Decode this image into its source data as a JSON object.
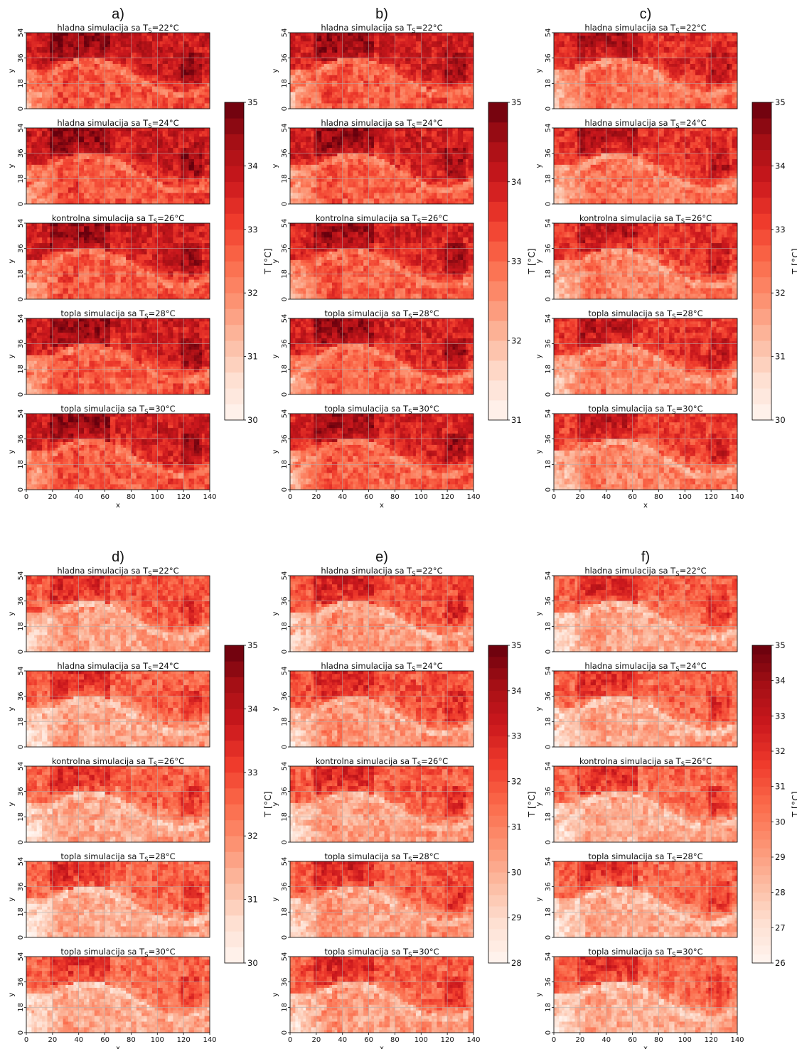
{
  "figure": {
    "subplot_titles": [
      "hladna simulacija sa T_S=22°C",
      "hladna simulacija sa T_S=24°C",
      "kontrolna simulacija sa T_S=26°C",
      "topla simulacija sa T_S=28°C",
      "topla simulacija sa T_S=30°C"
    ],
    "title_subscript": "S",
    "colors": {
      "cmap": "Reds",
      "low": "#fff5f0",
      "high": "#67000d",
      "grid": "#b0b0b0"
    }
  },
  "chart_data": [
    {
      "type": "heatmap",
      "panel": "a)",
      "titles": [
        "hladna simulacija sa T_S=22°C",
        "hladna simulacija sa T_S=24°C",
        "kontrolna simulacija sa T_S=26°C",
        "topla simulacija sa T_S=28°C",
        "topla simulacija sa T_S=30°C"
      ],
      "xlabel": "x",
      "ylabel": "y",
      "xlim": [
        0,
        140
      ],
      "ylim": [
        0,
        54
      ],
      "xticks": [
        0,
        20,
        40,
        60,
        80,
        100,
        120,
        140
      ],
      "yticks": [
        0,
        18,
        36,
        54
      ],
      "colorbar": {
        "label": "T [°C]",
        "range": [
          30,
          35
        ],
        "ticks": [
          30,
          31,
          32,
          33,
          34,
          35
        ]
      },
      "mean_level": [
        0.72,
        0.72,
        0.7,
        0.7,
        0.7
      ],
      "grid": true
    },
    {
      "type": "heatmap",
      "panel": "b)",
      "titles": [
        "hladna simulacija sa T_S=22°C",
        "hladna simulacija sa T_S=24°C",
        "kontrolna simulacija sa T_S=26°C",
        "topla simulacija sa T_S=28°C",
        "topla simulacija sa T_S=30°C"
      ],
      "xlabel": "x",
      "ylabel": "y",
      "xlim": [
        0,
        140
      ],
      "ylim": [
        0,
        54
      ],
      "xticks": [
        0,
        20,
        40,
        60,
        80,
        100,
        120,
        140
      ],
      "yticks": [
        0,
        18,
        36,
        54
      ],
      "colorbar": {
        "label": "T [°C]",
        "range": [
          31,
          35
        ],
        "ticks": [
          31,
          32,
          33,
          34,
          35
        ]
      },
      "mean_level": [
        0.7,
        0.69,
        0.68,
        0.68,
        0.68
      ],
      "grid": true
    },
    {
      "type": "heatmap",
      "panel": "c)",
      "titles": [
        "hladna simulacija sa T_S=22°C",
        "hladna simulacija sa T_S=24°C",
        "kontrolna simulacija sa T_S=26°C",
        "topla simulacija sa T_S=28°C",
        "topla simulacija sa T_S=30°C"
      ],
      "xlabel": "x",
      "ylabel": "y",
      "xlim": [
        0,
        140
      ],
      "ylim": [
        0,
        54
      ],
      "xticks": [
        0,
        20,
        40,
        60,
        80,
        100,
        120,
        140
      ],
      "yticks": [
        0,
        18,
        36,
        54
      ],
      "colorbar": {
        "label": "T [°C]",
        "range": [
          30,
          35
        ],
        "ticks": [
          30,
          31,
          32,
          33,
          34,
          35
        ]
      },
      "mean_level": [
        0.64,
        0.62,
        0.6,
        0.6,
        0.58
      ],
      "grid": true
    },
    {
      "type": "heatmap",
      "panel": "d)",
      "titles": [
        "hladna simulacija sa T_S=22°C",
        "hladna simulacija sa T_S=24°C",
        "kontrolna simulacija sa T_S=26°C",
        "topla simulacija sa T_S=28°C",
        "topla simulacija sa T_S=30°C"
      ],
      "xlabel": "x",
      "ylabel": "y",
      "xlim": [
        0,
        140
      ],
      "ylim": [
        0,
        54
      ],
      "xticks": [
        0,
        20,
        40,
        60,
        80,
        100,
        120,
        140
      ],
      "yticks": [
        0,
        18,
        36,
        54
      ],
      "colorbar": {
        "label": "T [°C]",
        "range": [
          30,
          35
        ],
        "ticks": [
          30,
          31,
          32,
          33,
          34,
          35
        ]
      },
      "mean_level": [
        0.5,
        0.48,
        0.47,
        0.46,
        0.46
      ],
      "grid": true
    },
    {
      "type": "heatmap",
      "panel": "e)",
      "titles": [
        "hladna simulacija sa T_S=22°C",
        "hladna simulacija sa T_S=24°C",
        "kontrolna simulacija sa T_S=26°C",
        "topla simulacija sa T_S=28°C",
        "topla simulacija sa T_S=30°C"
      ],
      "xlabel": "x",
      "ylabel": "y",
      "xlim": [
        0,
        140
      ],
      "ylim": [
        0,
        54
      ],
      "xticks": [
        0,
        20,
        40,
        60,
        80,
        100,
        120,
        140
      ],
      "yticks": [
        0,
        18,
        36,
        54
      ],
      "colorbar": {
        "label": "T [°C]",
        "range": [
          28,
          35
        ],
        "ticks": [
          28,
          29,
          30,
          31,
          32,
          33,
          34,
          35
        ]
      },
      "mean_level": [
        0.52,
        0.52,
        0.5,
        0.5,
        0.5
      ],
      "grid": true
    },
    {
      "type": "heatmap",
      "panel": "f)",
      "titles": [
        "hladna simulacija sa T_S=22°C",
        "hladna simulacija sa T_S=24°C",
        "kontrolna simulacija sa T_S=26°C",
        "topla simulacija sa T_S=28°C",
        "topla simulacija sa T_S=30°C"
      ],
      "xlabel": "x",
      "ylabel": "y",
      "xlim": [
        0,
        140
      ],
      "ylim": [
        0,
        54
      ],
      "xticks": [
        0,
        20,
        40,
        60,
        80,
        100,
        120,
        140
      ],
      "yticks": [
        0,
        18,
        36,
        54
      ],
      "colorbar": {
        "label": "T [°C]",
        "range": [
          26,
          35
        ],
        "ticks": [
          26,
          27,
          28,
          29,
          30,
          31,
          32,
          33,
          34,
          35
        ]
      },
      "mean_level": [
        0.48,
        0.47,
        0.46,
        0.46,
        0.46
      ],
      "grid": true
    }
  ]
}
